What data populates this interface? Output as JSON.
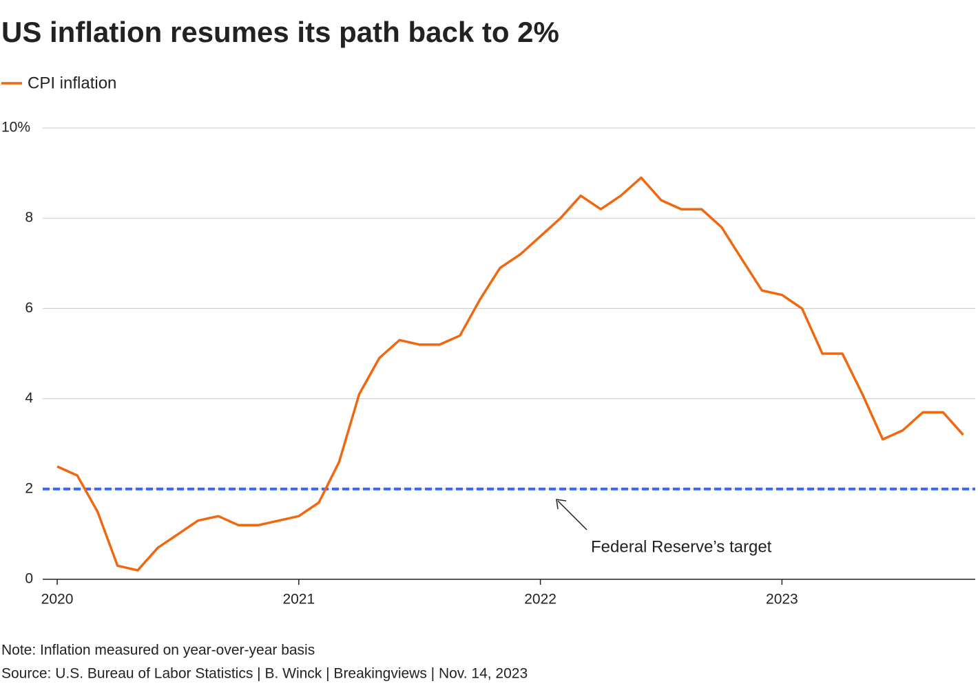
{
  "chart_data": {
    "type": "line",
    "title": "US inflation resumes its path back to 2%",
    "note": "Note: Inflation measured on year-over-year basis",
    "source": "Source: U.S. Bureau of Labor Statistics | B. Winck | Breakingviews | Nov. 14, 2023",
    "x": [
      2020,
      2020.083,
      2020.167,
      2020.25,
      2020.333,
      2020.417,
      2020.5,
      2020.583,
      2020.667,
      2020.75,
      2020.833,
      2020.917,
      2021,
      2021.083,
      2021.167,
      2021.25,
      2021.333,
      2021.417,
      2021.5,
      2021.583,
      2021.667,
      2021.75,
      2021.833,
      2021.917,
      2022,
      2022.083,
      2022.167,
      2022.25,
      2022.333,
      2022.417,
      2022.5,
      2022.583,
      2022.667,
      2022.75,
      2022.833,
      2022.917,
      2023,
      2023.083,
      2023.167,
      2023.25,
      2023.333,
      2023.417,
      2023.5,
      2023.583,
      2023.667,
      2023.75
    ],
    "series": [
      {
        "name": "CPI inflation",
        "color": "#f0670f",
        "values": [
          2.5,
          2.3,
          1.5,
          0.3,
          0.2,
          0.7,
          1.0,
          1.3,
          1.4,
          1.2,
          1.2,
          1.3,
          1.4,
          1.7,
          2.6,
          4.1,
          4.9,
          5.3,
          5.2,
          5.2,
          5.4,
          6.2,
          6.9,
          7.2,
          7.6,
          8.0,
          8.5,
          8.2,
          8.5,
          8.9,
          8.4,
          8.2,
          8.2,
          7.8,
          7.1,
          6.4,
          6.3,
          6.0,
          5.0,
          5.0,
          4.1,
          3.1,
          3.3,
          3.7,
          3.7,
          3.2
        ]
      }
    ],
    "reference_line": {
      "value": 2,
      "label": "Federal Reserve’s target",
      "color": "#3366ff"
    },
    "xlim": [
      2019.94,
      2023.8
    ],
    "xticks": [
      2020,
      2021,
      2022,
      2023
    ],
    "ylim": [
      0,
      10
    ],
    "yticks": [
      0,
      2,
      4,
      6,
      8,
      {
        "value": 10,
        "label": "10%"
      }
    ],
    "grid": true
  }
}
